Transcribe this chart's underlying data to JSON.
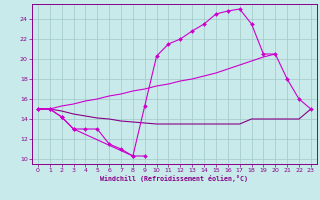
{
  "background_color": "#c8eaea",
  "grid_color": "#a0c8c8",
  "line_color": "#cc00cc",
  "line_color2": "#880088",
  "xlim": [
    -0.5,
    23.5
  ],
  "ylim": [
    9.5,
    25.5
  ],
  "xticks": [
    0,
    1,
    2,
    3,
    4,
    5,
    6,
    7,
    8,
    9,
    10,
    11,
    12,
    13,
    14,
    15,
    16,
    17,
    18,
    19,
    20,
    21,
    22,
    23
  ],
  "yticks": [
    10,
    12,
    14,
    16,
    18,
    20,
    22,
    24
  ],
  "xlabel": "Windchill (Refroidissement éolien,°C)",
  "line1_x": [
    0,
    1,
    2,
    3,
    4,
    5,
    6,
    7,
    8,
    9
  ],
  "line1_y": [
    15.0,
    15.0,
    14.2,
    13.0,
    13.0,
    13.0,
    11.5,
    11.0,
    10.3,
    10.3
  ],
  "line2_x": [
    0,
    1,
    2,
    3,
    4,
    5,
    6,
    7,
    8,
    9,
    10,
    11,
    12,
    13,
    14,
    15,
    16,
    17,
    18,
    19,
    20,
    21,
    22,
    23
  ],
  "line2_y": [
    15.0,
    15.0,
    14.8,
    14.5,
    14.3,
    14.1,
    14.0,
    13.8,
    13.7,
    13.6,
    13.5,
    13.5,
    13.5,
    13.5,
    13.5,
    13.5,
    13.5,
    13.5,
    14.0,
    14.0,
    14.0,
    14.0,
    14.0,
    15.0
  ],
  "line3_x": [
    0,
    1,
    2,
    3,
    8,
    9,
    10,
    11,
    12,
    13,
    14,
    15,
    16,
    17,
    18,
    19,
    20,
    21,
    22,
    23
  ],
  "line3_y": [
    15.0,
    15.0,
    14.2,
    13.0,
    10.3,
    15.3,
    20.3,
    21.5,
    22.0,
    22.8,
    23.5,
    24.5,
    24.8,
    25.0,
    23.5,
    20.5,
    20.5,
    18.0,
    16.0,
    15.0
  ],
  "line4_x": [
    0,
    1,
    2,
    3,
    4,
    5,
    6,
    7,
    8,
    9,
    10,
    11,
    12,
    13,
    14,
    15,
    16,
    17,
    18,
    19,
    20
  ],
  "line4_y": [
    15.0,
    15.0,
    15.3,
    15.5,
    15.8,
    16.0,
    16.3,
    16.5,
    16.8,
    17.0,
    17.3,
    17.5,
    17.8,
    18.0,
    18.3,
    18.6,
    19.0,
    19.4,
    19.8,
    20.2,
    20.5
  ]
}
